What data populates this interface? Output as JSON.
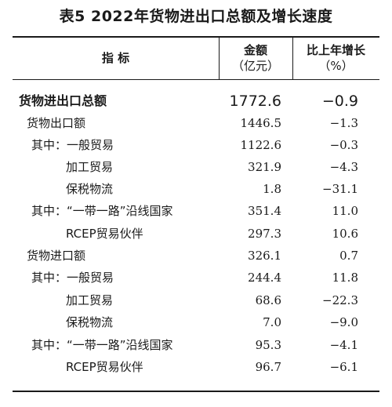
{
  "title": "表5  2022年货物进出口总额及增长速度",
  "header": {
    "indicator": "指    标",
    "amount_line1": "金额",
    "amount_line2": "（亿元）",
    "growth_line1": "比上年增长",
    "growth_line2": "（%）"
  },
  "rows": [
    {
      "label": "货物进出口总额",
      "amount": "1772.6",
      "growth": "−0.9"
    },
    {
      "label": "货物出口额",
      "amount": "1446.5",
      "growth": "−1.3"
    },
    {
      "label": "其中：一般贸易",
      "amount": "1122.6",
      "growth": "−0.3"
    },
    {
      "label": "加工贸易",
      "amount": "321.9",
      "growth": "−4.3"
    },
    {
      "label": "保税物流",
      "amount": "1.8",
      "growth": "−31.1"
    },
    {
      "label": "其中：“一带一路”沿线国家",
      "amount": "351.4",
      "growth": "11.0"
    },
    {
      "label": "RCEP贸易伙伴",
      "amount": "297.3",
      "growth": "10.6"
    },
    {
      "label": "货物进口额",
      "amount": "326.1",
      "growth": "0.7"
    },
    {
      "label": "其中：一般贸易",
      "amount": "244.4",
      "growth": "11.8"
    },
    {
      "label": "加工贸易",
      "amount": "68.6",
      "growth": "−22.3"
    },
    {
      "label": "保税物流",
      "amount": "7.0",
      "growth": "−9.0"
    },
    {
      "label": "其中：“一带一路”沿线国家",
      "amount": "95.3",
      "growth": "−4.1"
    },
    {
      "label": "RCEP贸易伙伴",
      "amount": "96.7",
      "growth": "−6.1"
    }
  ]
}
